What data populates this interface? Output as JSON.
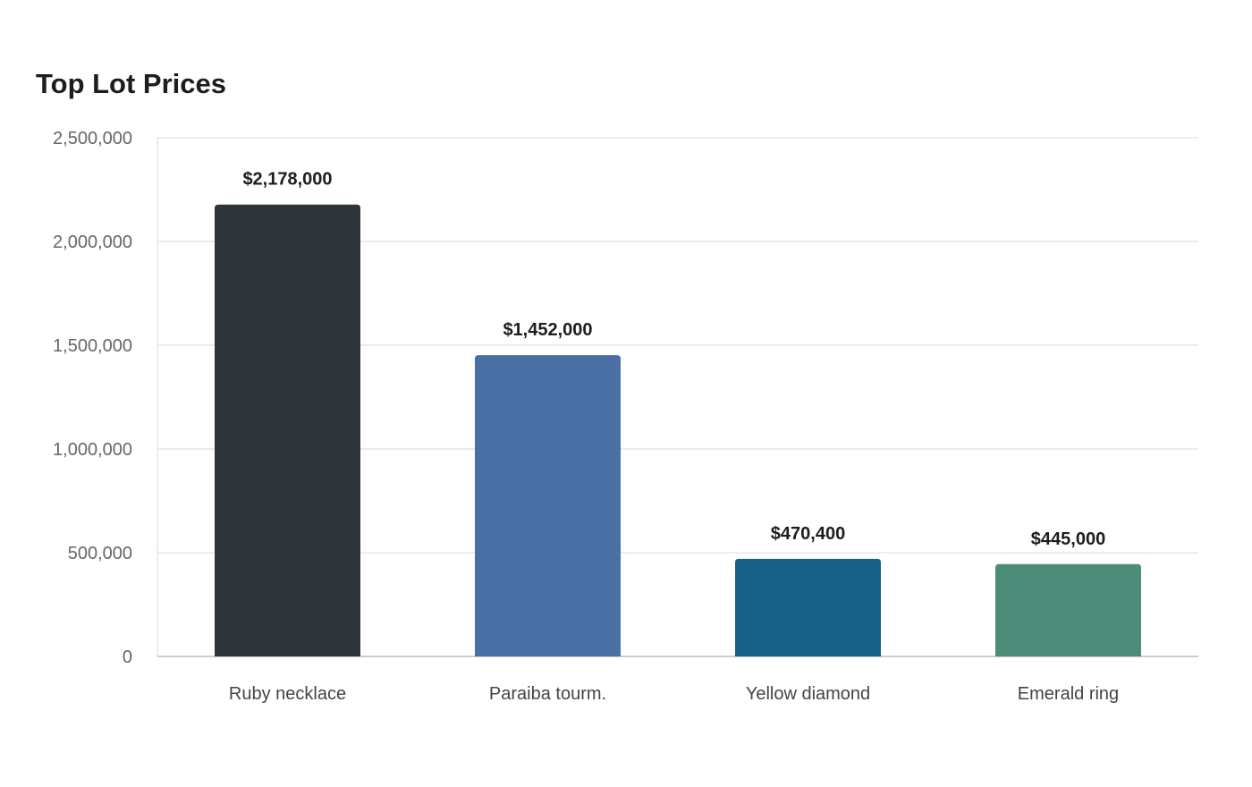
{
  "chart_data": {
    "type": "bar",
    "title": "Top Lot Prices",
    "xlabel": "",
    "ylabel": "",
    "categories": [
      "Ruby necklace",
      "Paraiba tourm.",
      "Yellow diamond",
      "Emerald ring"
    ],
    "values": [
      2178000,
      1452000,
      470400,
      445000
    ],
    "data_labels": [
      "$2,178,000",
      "$1,452,000",
      "$470,400",
      "$445,000"
    ],
    "bar_colors": [
      "#2e3538",
      "#4a6fa5",
      "#186289",
      "#4e8c7a"
    ],
    "ylim": [
      0,
      2500000
    ],
    "yticks": [
      0,
      500000,
      1000000,
      1500000,
      2000000,
      2500000
    ],
    "ytick_labels": [
      "0",
      "500,000",
      "1,000,000",
      "1,500,000",
      "2,000,000",
      "2,500,000"
    ],
    "grid": true,
    "legend": "none"
  }
}
